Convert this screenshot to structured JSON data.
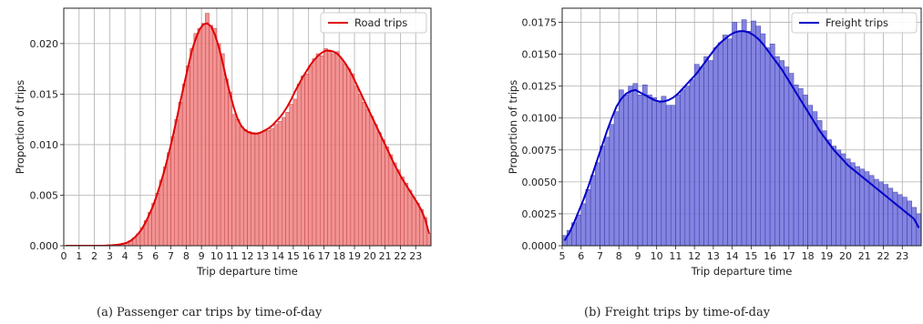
{
  "captions": {
    "a": "(a) Passenger car trips by time-of-day",
    "b": "(b) Freight trips by time-of-day"
  },
  "chart_data": [
    {
      "type": "bar",
      "title": "",
      "xlabel": "Trip departure time",
      "ylabel": "Proportion of trips",
      "xlim": [
        0,
        24
      ],
      "ylim": [
        0,
        0.0235
      ],
      "xticks": [
        0,
        1,
        2,
        3,
        4,
        5,
        6,
        7,
        8,
        9,
        10,
        11,
        12,
        13,
        14,
        15,
        16,
        17,
        18,
        19,
        20,
        21,
        22,
        23
      ],
      "yticks": [
        0.0,
        0.005,
        0.01,
        0.015,
        0.02
      ],
      "ytick_labels": [
        "0.000",
        "0.005",
        "0.010",
        "0.015",
        "0.020"
      ],
      "grid": true,
      "legend": {
        "entry": "Road trips",
        "placement": "top-right"
      },
      "bar_color": "#f08080",
      "bar_edge": "#c24a4a",
      "kde_color": "#e00000",
      "bin_width": 0.25,
      "x": [
        0.125,
        0.375,
        0.625,
        0.875,
        1.125,
        1.375,
        1.625,
        1.875,
        2.125,
        2.375,
        2.625,
        2.875,
        3.125,
        3.375,
        3.625,
        3.875,
        4.125,
        4.375,
        4.625,
        4.875,
        5.125,
        5.375,
        5.625,
        5.875,
        6.125,
        6.375,
        6.625,
        6.875,
        7.125,
        7.375,
        7.625,
        7.875,
        8.125,
        8.375,
        8.625,
        8.875,
        9.125,
        9.375,
        9.625,
        9.875,
        10.125,
        10.375,
        10.625,
        10.875,
        11.125,
        11.375,
        11.625,
        11.875,
        12.125,
        12.375,
        12.625,
        12.875,
        13.125,
        13.375,
        13.625,
        13.875,
        14.125,
        14.375,
        14.625,
        14.875,
        15.125,
        15.375,
        15.625,
        15.875,
        16.125,
        16.375,
        16.625,
        16.875,
        17.125,
        17.375,
        17.625,
        17.875,
        18.125,
        18.375,
        18.625,
        18.875,
        19.125,
        19.375,
        19.625,
        19.875,
        20.125,
        20.375,
        20.625,
        20.875,
        21.125,
        21.375,
        21.625,
        21.875,
        22.125,
        22.375,
        22.625,
        22.875,
        23.125,
        23.375,
        23.625,
        23.875
      ],
      "values": [
        0,
        0,
        0,
        0,
        0,
        0,
        0,
        0,
        0,
        0,
        0,
        5e-05,
        5e-05,
        0.0001,
        0.0001,
        0.0002,
        0.0003,
        0.0005,
        0.0008,
        0.0012,
        0.0018,
        0.0025,
        0.0033,
        0.0042,
        0.0052,
        0.0065,
        0.0078,
        0.0092,
        0.0108,
        0.0125,
        0.0142,
        0.016,
        0.0178,
        0.0195,
        0.021,
        0.0215,
        0.022,
        0.023,
        0.0218,
        0.0215,
        0.02,
        0.019,
        0.0165,
        0.0152,
        0.013,
        0.0125,
        0.0118,
        0.0115,
        0.0113,
        0.0112,
        0.011,
        0.0112,
        0.0113,
        0.0114,
        0.0116,
        0.012,
        0.0123,
        0.0127,
        0.0132,
        0.014,
        0.0145,
        0.016,
        0.0168,
        0.017,
        0.0178,
        0.0185,
        0.019,
        0.0188,
        0.0195,
        0.0192,
        0.019,
        0.0192,
        0.0185,
        0.018,
        0.0175,
        0.017,
        0.0158,
        0.015,
        0.0142,
        0.0135,
        0.0128,
        0.012,
        0.0112,
        0.0105,
        0.0098,
        0.009,
        0.0082,
        0.0075,
        0.0068,
        0.0062,
        0.0055,
        0.0048,
        0.0042,
        0.0036,
        0.0028,
        0.0012
      ],
      "kde": [
        0,
        0,
        0,
        0,
        0,
        0,
        0,
        0,
        0,
        0,
        0,
        3e-05,
        5e-05,
        8e-05,
        0.00012,
        0.0002,
        0.0003,
        0.0005,
        0.0008,
        0.0012,
        0.0017,
        0.0024,
        0.0032,
        0.0041,
        0.0052,
        0.0064,
        0.0077,
        0.0092,
        0.0108,
        0.0125,
        0.0143,
        0.016,
        0.0177,
        0.0193,
        0.0205,
        0.0214,
        0.0219,
        0.022,
        0.0217,
        0.0209,
        0.0197,
        0.0182,
        0.0165,
        0.015,
        0.0136,
        0.0125,
        0.0118,
        0.0114,
        0.0112,
        0.0111,
        0.0111,
        0.0112,
        0.0114,
        0.0116,
        0.0119,
        0.0123,
        0.0127,
        0.0132,
        0.0138,
        0.0145,
        0.0153,
        0.016,
        0.0167,
        0.0173,
        0.0179,
        0.0184,
        0.0188,
        0.0191,
        0.0193,
        0.0193,
        0.0192,
        0.019,
        0.0186,
        0.0181,
        0.0175,
        0.0168,
        0.016,
        0.0152,
        0.0144,
        0.0136,
        0.0128,
        0.012,
        0.0112,
        0.0104,
        0.0096,
        0.0088,
        0.008,
        0.0073,
        0.0066,
        0.006,
        0.0054,
        0.0048,
        0.0042,
        0.0035,
        0.0026,
        0.0012
      ]
    },
    {
      "type": "bar",
      "title": "",
      "xlabel": "Trip departure time",
      "ylabel": "Proportion of trips",
      "xlim": [
        5,
        24
      ],
      "ylim": [
        0,
        0.0186
      ],
      "xticks": [
        5,
        6,
        7,
        8,
        9,
        10,
        11,
        12,
        13,
        14,
        15,
        16,
        17,
        18,
        19,
        20,
        21,
        22,
        23
      ],
      "yticks": [
        0.0,
        0.0025,
        0.005,
        0.0075,
        0.01,
        0.0125,
        0.015,
        0.0175
      ],
      "ytick_labels": [
        "0.0000",
        "0.0025",
        "0.0050",
        "0.0075",
        "0.0100",
        "0.0125",
        "0.0150",
        "0.0175"
      ],
      "grid": true,
      "legend": {
        "entry": "Freight trips",
        "placement": "top-right"
      },
      "bar_color": "#6f6fdc",
      "bar_edge": "#3c3ca8",
      "kde_color": "#0000c8",
      "bin_width": 0.25,
      "x": [
        5.125,
        5.375,
        5.625,
        5.875,
        6.125,
        6.375,
        6.625,
        6.875,
        7.125,
        7.375,
        7.625,
        7.875,
        8.125,
        8.375,
        8.625,
        8.875,
        9.125,
        9.375,
        9.625,
        9.875,
        10.125,
        10.375,
        10.625,
        10.875,
        11.125,
        11.375,
        11.625,
        11.875,
        12.125,
        12.375,
        12.625,
        12.875,
        13.125,
        13.375,
        13.625,
        13.875,
        14.125,
        14.375,
        14.625,
        14.875,
        15.125,
        15.375,
        15.625,
        15.875,
        16.125,
        16.375,
        16.625,
        16.875,
        17.125,
        17.375,
        17.625,
        17.875,
        18.125,
        18.375,
        18.625,
        18.875,
        19.125,
        19.375,
        19.625,
        19.875,
        20.125,
        20.375,
        20.625,
        20.875,
        21.125,
        21.375,
        21.625,
        21.875,
        22.125,
        22.375,
        22.625,
        22.875,
        23.125,
        23.375,
        23.625,
        23.875
      ],
      "values": [
        0.0008,
        0.0012,
        0.0018,
        0.0024,
        0.0033,
        0.0044,
        0.0055,
        0.0065,
        0.0078,
        0.0085,
        0.0095,
        0.0105,
        0.0122,
        0.0118,
        0.0125,
        0.0127,
        0.0118,
        0.0126,
        0.0118,
        0.0116,
        0.0112,
        0.0117,
        0.011,
        0.011,
        0.0118,
        0.0122,
        0.0125,
        0.013,
        0.0142,
        0.014,
        0.0148,
        0.0145,
        0.0155,
        0.0159,
        0.0165,
        0.0162,
        0.0175,
        0.0168,
        0.0177,
        0.0168,
        0.0176,
        0.0172,
        0.0166,
        0.0155,
        0.0158,
        0.0148,
        0.0145,
        0.014,
        0.0135,
        0.0126,
        0.0123,
        0.0118,
        0.011,
        0.0105,
        0.0098,
        0.009,
        0.0083,
        0.0078,
        0.0075,
        0.0072,
        0.0068,
        0.0065,
        0.0062,
        0.006,
        0.0058,
        0.0055,
        0.0052,
        0.005,
        0.0048,
        0.0045,
        0.0042,
        0.004,
        0.0038,
        0.0035,
        0.003,
        0.0025
      ],
      "kde": [
        0.0004,
        0.001,
        0.0018,
        0.0027,
        0.0036,
        0.0046,
        0.0057,
        0.0068,
        0.0079,
        0.009,
        0.01,
        0.0109,
        0.0115,
        0.0119,
        0.0121,
        0.0122,
        0.012,
        0.0118,
        0.0116,
        0.0114,
        0.0113,
        0.0113,
        0.0114,
        0.0116,
        0.0119,
        0.0123,
        0.0127,
        0.0131,
        0.0135,
        0.014,
        0.0145,
        0.015,
        0.0155,
        0.0159,
        0.0162,
        0.0165,
        0.0167,
        0.0168,
        0.0168,
        0.0167,
        0.0165,
        0.0162,
        0.0158,
        0.0153,
        0.0148,
        0.0143,
        0.0138,
        0.0132,
        0.0126,
        0.012,
        0.0114,
        0.0108,
        0.0102,
        0.0096,
        0.009,
        0.0085,
        0.008,
        0.0075,
        0.0071,
        0.0067,
        0.0063,
        0.006,
        0.0057,
        0.0054,
        0.0051,
        0.0048,
        0.0045,
        0.0042,
        0.0039,
        0.0036,
        0.0033,
        0.003,
        0.0027,
        0.0024,
        0.0021,
        0.0014
      ]
    }
  ]
}
